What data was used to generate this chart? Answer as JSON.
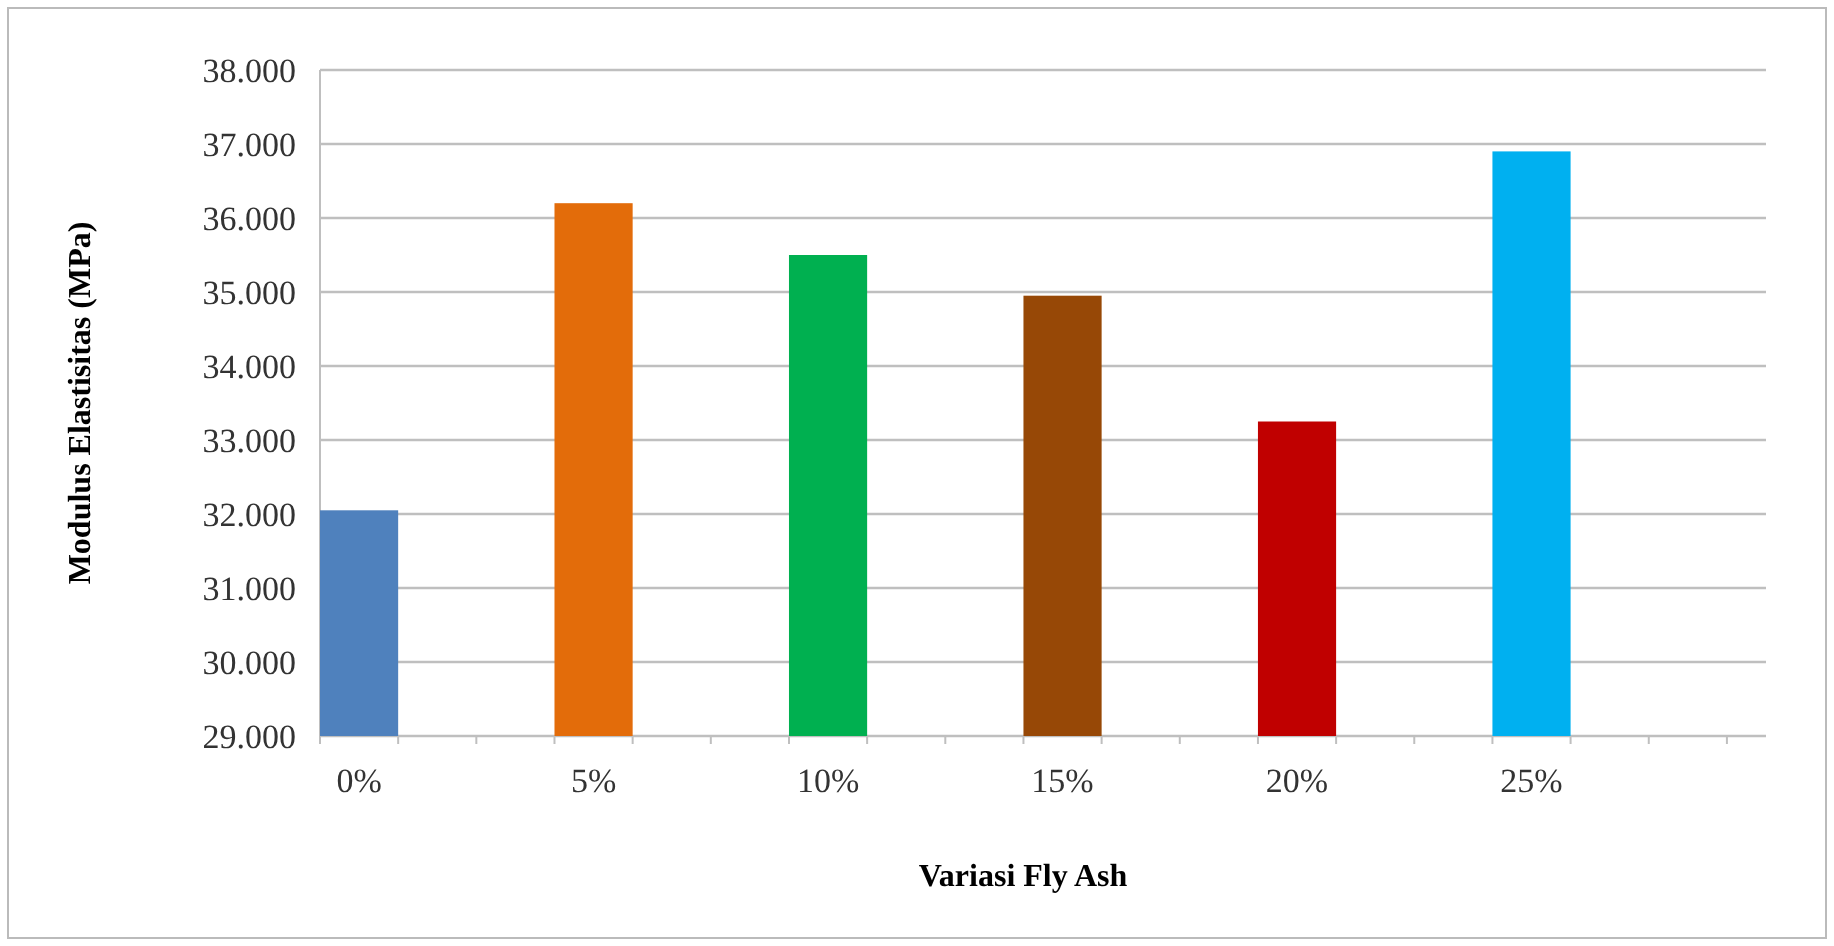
{
  "chart_data": {
    "type": "bar",
    "xlabel": "Variasi Fly Ash",
    "ylabel": "Modulus Elastisitas (MPa)",
    "categories": [
      "0%",
      "5%",
      "10%",
      "15%",
      "20%",
      "25%"
    ],
    "values": [
      32050,
      36200,
      35500,
      34950,
      33250,
      36900
    ],
    "colors": [
      "#4f81bd",
      "#e36c0a",
      "#00b050",
      "#974806",
      "#c00000",
      "#00b0f0"
    ],
    "ylim": [
      29000,
      38000
    ],
    "yticks": [
      {
        "value": 29000,
        "label": "29.000"
      },
      {
        "value": 30000,
        "label": "30.000"
      },
      {
        "value": 31000,
        "label": "31.000"
      },
      {
        "value": 32000,
        "label": "32.000"
      },
      {
        "value": 33000,
        "label": "33.000"
      },
      {
        "value": 34000,
        "label": "34.000"
      },
      {
        "value": 35000,
        "label": "35.000"
      },
      {
        "value": 36000,
        "label": "36.000"
      },
      {
        "value": 37000,
        "label": "37.000"
      },
      {
        "value": 38000,
        "label": "38.000"
      }
    ],
    "grid": "y"
  }
}
